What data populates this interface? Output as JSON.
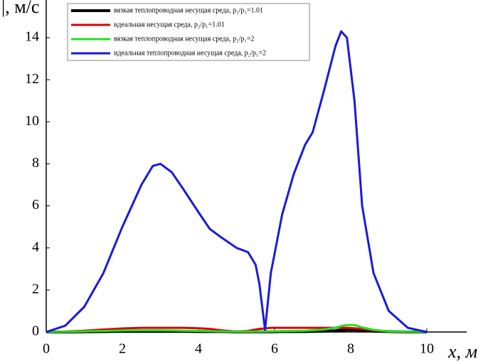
{
  "chart_data": {
    "type": "line",
    "y_label": "|, м/с",
    "x_label": "x, м",
    "xlim": [
      0,
      11.05
    ],
    "ylim": [
      0,
      15.8
    ],
    "xticks": [
      0,
      2,
      4,
      6,
      8,
      10
    ],
    "yticks": [
      0,
      2,
      4,
      6,
      8,
      10,
      12,
      14
    ],
    "x": [
      0,
      0.5,
      1,
      1.5,
      2,
      2.5,
      2.8,
      3,
      3.3,
      3.6,
      4,
      4.3,
      4.6,
      5,
      5.3,
      5.5,
      5.6,
      5.75,
      5.9,
      6.2,
      6.5,
      6.8,
      7,
      7.3,
      7.6,
      7.75,
      7.9,
      8.1,
      8.3,
      8.6,
      9,
      9.5,
      10
    ],
    "series": [
      {
        "name": "вязкая теплопроводная несущая среда, p₂/p₁=1.01",
        "color": "#000000",
        "width": 4,
        "values": [
          0,
          0,
          0.01,
          0.02,
          0.03,
          0.03,
          0.03,
          0.03,
          0.03,
          0.03,
          0.02,
          0.02,
          0.02,
          0.01,
          0.01,
          0.01,
          0.01,
          0.01,
          0.01,
          0.02,
          0.02,
          0.02,
          0.03,
          0.04,
          0.06,
          0.08,
          0.1,
          0.1,
          0.07,
          0.04,
          0.02,
          0,
          0
        ]
      },
      {
        "name": "идеальная несущая среда, p₂/p₁=1.01",
        "color": "#e00000",
        "width": 3,
        "values": [
          0,
          0.02,
          0.06,
          0.12,
          0.17,
          0.2,
          0.2,
          0.2,
          0.2,
          0.2,
          0.18,
          0.15,
          0.08,
          0.02,
          0.05,
          0.12,
          0.15,
          0.17,
          0.2,
          0.2,
          0.2,
          0.2,
          0.2,
          0.2,
          0.2,
          0.2,
          0.2,
          0.18,
          0.15,
          0.08,
          0.03,
          0,
          0
        ]
      },
      {
        "name": "вязкая теплопроводная несущая среда, p₂/p₁=2",
        "color": "#22e022",
        "width": 3,
        "values": [
          0,
          0.01,
          0.03,
          0.05,
          0.07,
          0.08,
          0.08,
          0.08,
          0.07,
          0.06,
          0.05,
          0.04,
          0.03,
          0.02,
          0.02,
          0.02,
          0.02,
          0.02,
          0.03,
          0.04,
          0.05,
          0.06,
          0.08,
          0.12,
          0.2,
          0.28,
          0.33,
          0.33,
          0.22,
          0.1,
          0.03,
          0.01,
          0
        ]
      },
      {
        "name": "идеальная теплопроводная несущая среда, p₂/p₁=2",
        "color": "#1a1adc",
        "width": 3,
        "values": [
          0,
          0.3,
          1.2,
          2.8,
          5.0,
          7.0,
          7.9,
          8.0,
          7.6,
          6.8,
          5.7,
          4.9,
          4.5,
          4.0,
          3.8,
          3.2,
          2.3,
          0.1,
          2.8,
          5.6,
          7.5,
          8.9,
          9.5,
          11.5,
          13.6,
          14.3,
          14.0,
          11.0,
          6.0,
          2.8,
          1.0,
          0.2,
          0
        ]
      }
    ]
  }
}
